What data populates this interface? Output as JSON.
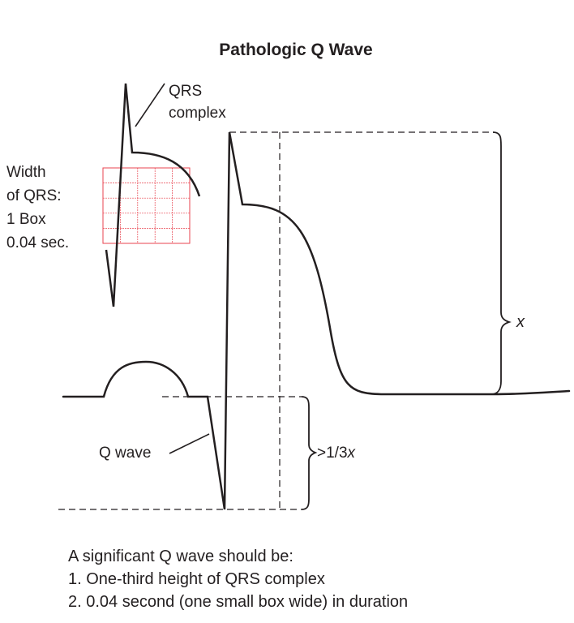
{
  "title": "Pathologic Q Wave",
  "labels": {
    "qrs_line1": "QRS",
    "qrs_line2": "complex",
    "width_line1": "Width",
    "width_line2": "of QRS:",
    "width_line3": "1 Box",
    "width_line4": "0.04 sec.",
    "x_label": "x",
    "q_wave": "Q wave",
    "third_prefix": ">1/3",
    "third_var": "x"
  },
  "caption": {
    "intro": "A significant Q wave should be:",
    "items": [
      "1. One-third height of QRS complex",
      "2. 0.04 second (one small box wide) in duration"
    ]
  },
  "colors": {
    "ink": "#231f20",
    "grid": "#e8434f"
  }
}
